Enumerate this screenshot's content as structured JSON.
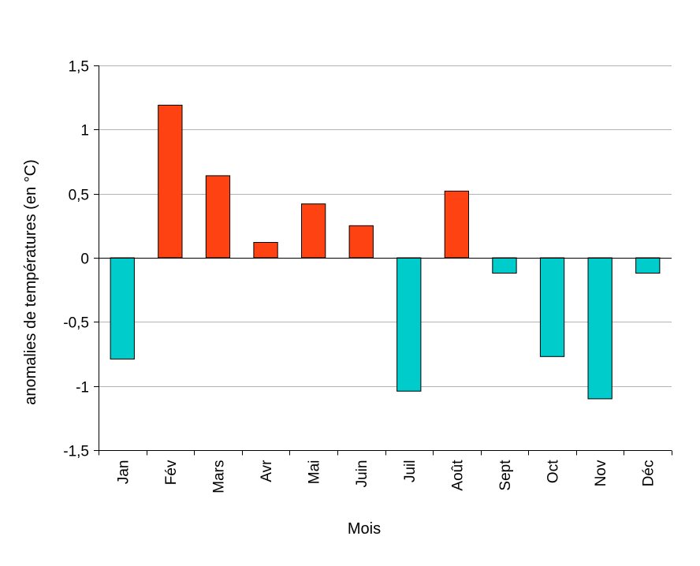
{
  "chart_data": {
    "type": "bar",
    "title": "",
    "xlabel": "Mois",
    "ylabel": "anomalies de températures (en °C)",
    "ylim": [
      -1.5,
      1.5
    ],
    "yticks": [
      1.5,
      1,
      0.5,
      0,
      -0.5,
      -1,
      -1.5
    ],
    "ytick_labels": [
      "1,5",
      "1",
      "0,5",
      "0",
      "-0,5",
      "-1",
      "-1,5"
    ],
    "grid": "horizontal",
    "legend": "none",
    "categories": [
      "Jan",
      "Fév",
      "Mars",
      "Avr",
      "Mai",
      "Juin",
      "Juil",
      "Août",
      "Sept",
      "Oct",
      "Nov",
      "Déc"
    ],
    "values": [
      -0.79,
      1.19,
      0.64,
      0.12,
      0.42,
      0.25,
      -1.04,
      0.52,
      -0.12,
      -0.77,
      -1.1,
      -0.12
    ],
    "colors": {
      "positive": "#ff4211",
      "negative": "#00cccc",
      "grid": "#b3b3b3",
      "axis": "#000000"
    }
  }
}
